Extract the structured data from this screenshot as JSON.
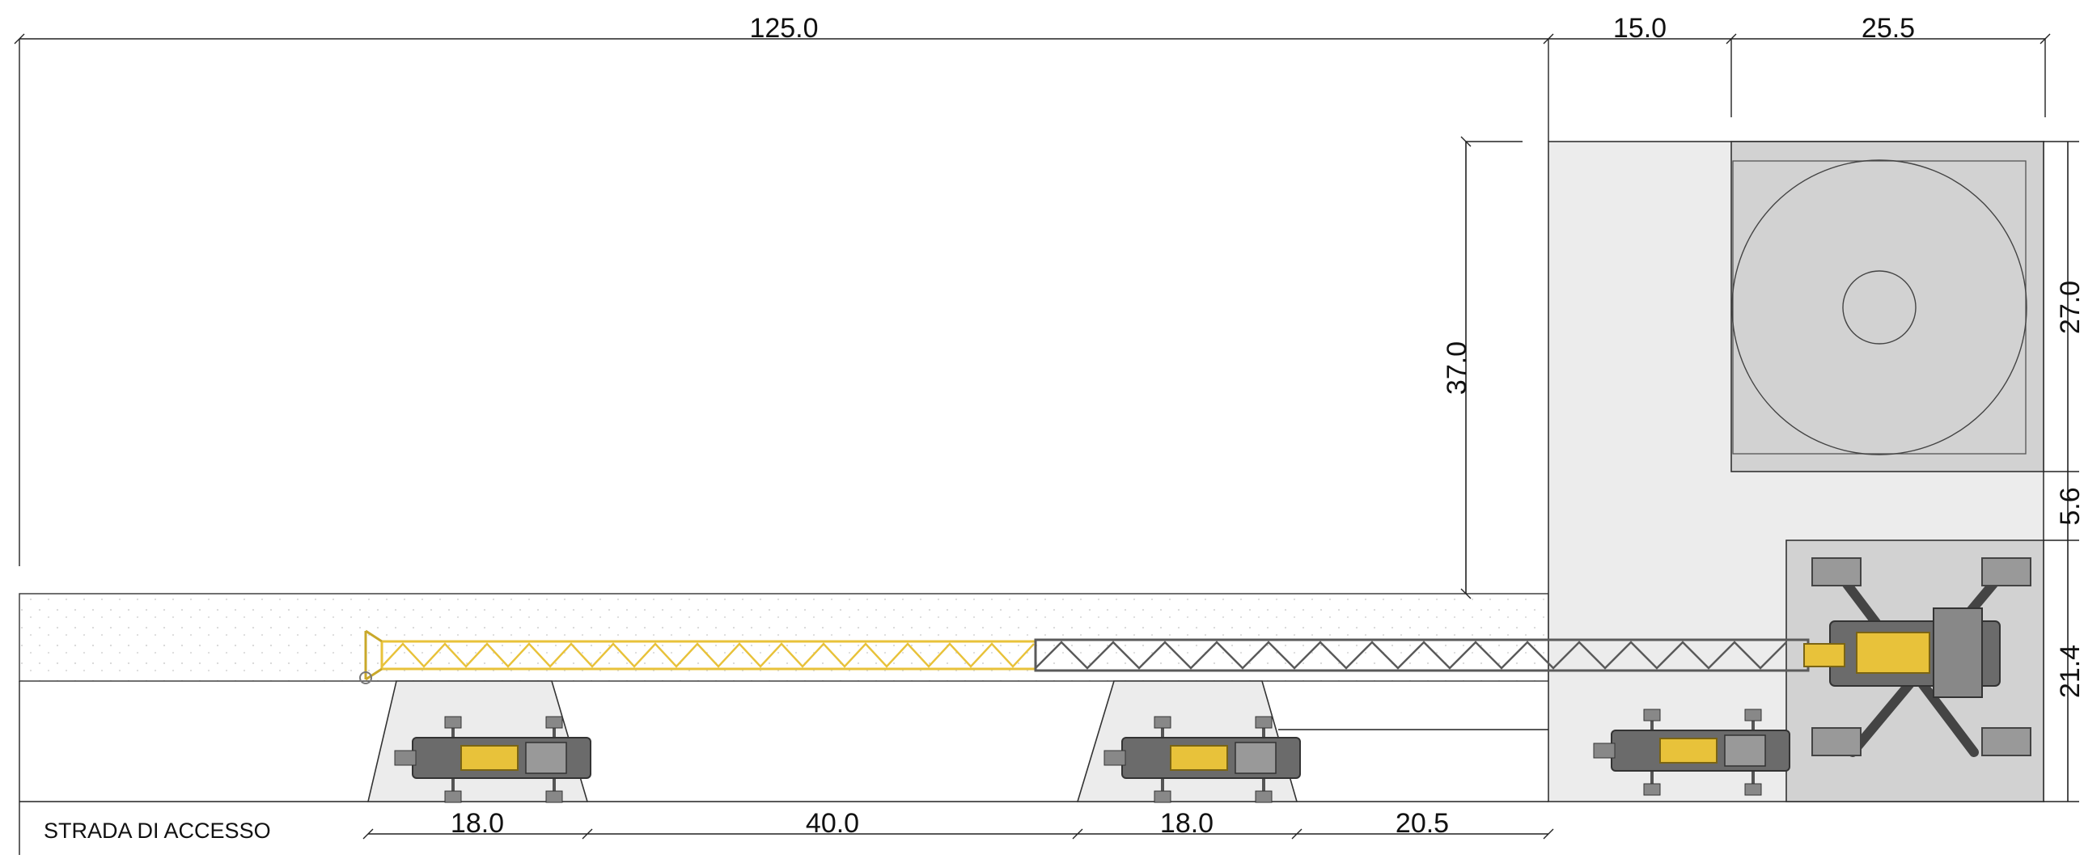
{
  "dimensions": {
    "top_boom": "125.0",
    "top_area": "15.0",
    "top_tank": "25.5",
    "boom_height": "37.0",
    "right_tank": "27.0",
    "right_gap": "5.6",
    "right_crane": "21.4",
    "bottom_assist_1": "18.0",
    "bottom_gap": "40.0",
    "bottom_assist_2": "18.0",
    "bottom_end": "20.5"
  },
  "road_label": "STRADA DI ACCESSO",
  "colors": {
    "boom_yellow": "#e8c23a",
    "boom_dark": "#5a5a5a",
    "area_light": "#ececec",
    "area_mid": "#d2d2d2",
    "crane_body": "#6b6b6b",
    "dotted_strip": "#f4f4f4"
  },
  "icons": [
    "main-crawler-crane-icon",
    "assist-crane-icon",
    "outrigger-pad-icon",
    "tank-icon"
  ]
}
